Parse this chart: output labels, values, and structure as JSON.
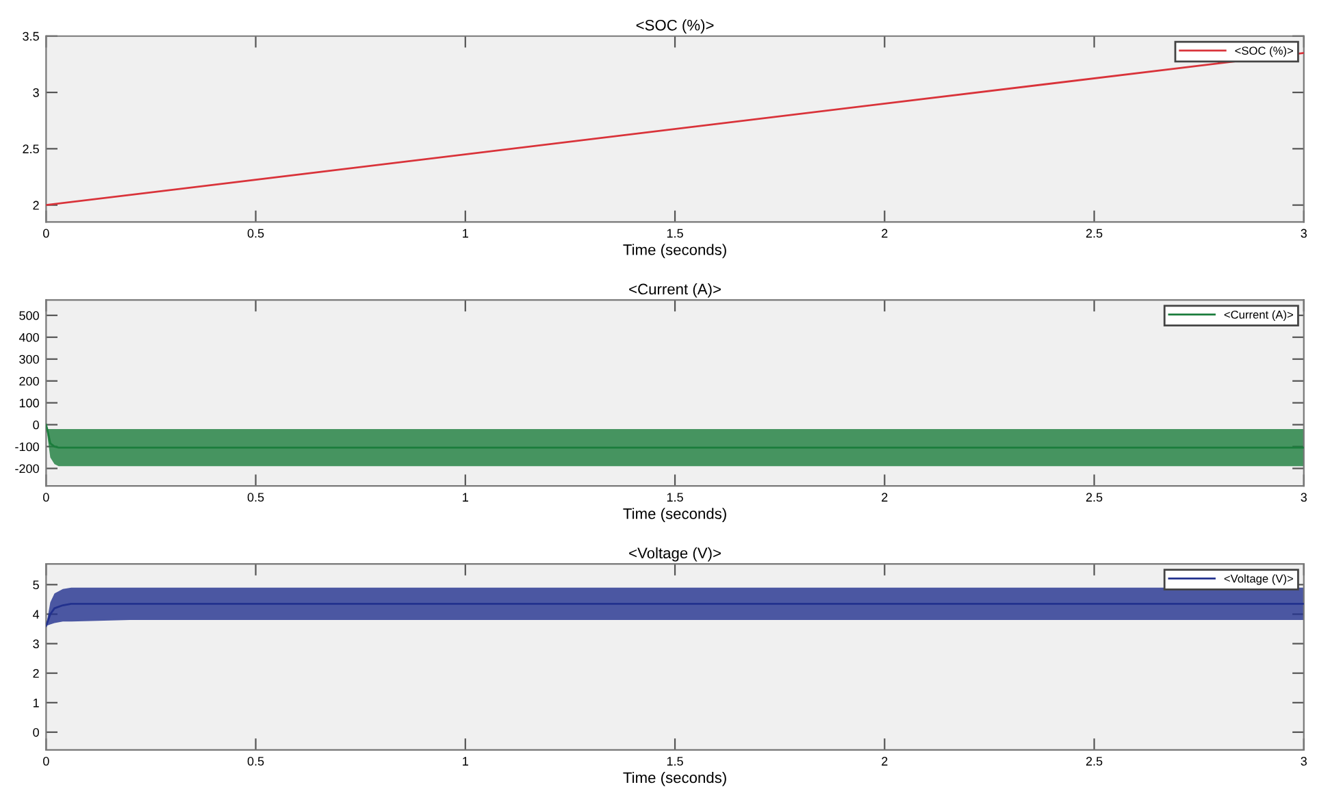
{
  "chart_data": [
    {
      "type": "line",
      "title": "<SOC (%)>",
      "xlabel": "Time (seconds)",
      "xlim": [
        0,
        3
      ],
      "xticks": [
        0,
        0.5,
        1,
        1.5,
        2,
        2.5,
        3
      ],
      "ylim": [
        1.85,
        3.5
      ],
      "yticks": [
        2,
        2.5,
        3,
        3.5
      ],
      "grid": false,
      "legend": "top right",
      "series": [
        {
          "name": "<SOC (%)>",
          "color": "#d9333a",
          "x": [
            0,
            3
          ],
          "values": [
            2.0,
            3.35
          ]
        }
      ]
    },
    {
      "type": "line",
      "title": "<Current (A)>",
      "xlabel": "Time (seconds)",
      "xlim": [
        0,
        3
      ],
      "xticks": [
        0,
        0.5,
        1,
        1.5,
        2,
        2.5,
        3
      ],
      "ylim": [
        -280,
        570
      ],
      "yticks": [
        -200,
        -100,
        0,
        100,
        200,
        300,
        400,
        500
      ],
      "grid": false,
      "legend": "top right",
      "series": [
        {
          "name": "<Current (A)>",
          "color": "#1b7d3c",
          "x": [
            0,
            0.005,
            0.01,
            0.02,
            0.03,
            0.05,
            3
          ],
          "values": [
            0,
            -40,
            -85,
            -100,
            -105,
            -105,
            -105
          ],
          "lower": [
            0,
            -80,
            -150,
            -180,
            -190,
            -190,
            -190
          ],
          "upper": [
            0,
            -20,
            -20,
            -20,
            -20,
            -20,
            -20
          ]
        }
      ]
    },
    {
      "type": "line",
      "title": "<Voltage (V)>",
      "xlabel": "Time (seconds)",
      "xlim": [
        0,
        3
      ],
      "xticks": [
        0,
        0.5,
        1,
        1.5,
        2,
        2.5,
        3
      ],
      "ylim": [
        -0.6,
        5.7
      ],
      "yticks": [
        0,
        1,
        2,
        3,
        4,
        5
      ],
      "grid": false,
      "legend": "top right",
      "series": [
        {
          "name": "<Voltage (V)>",
          "color": "#22318e",
          "x": [
            0,
            0.01,
            0.02,
            0.04,
            0.06,
            0.2,
            3
          ],
          "values": [
            3.6,
            4.0,
            4.2,
            4.3,
            4.35,
            4.35,
            4.35
          ],
          "lower": [
            3.6,
            3.65,
            3.7,
            3.75,
            3.75,
            3.8,
            3.8
          ],
          "upper": [
            3.6,
            4.4,
            4.7,
            4.85,
            4.9,
            4.9,
            4.9
          ]
        }
      ]
    }
  ]
}
